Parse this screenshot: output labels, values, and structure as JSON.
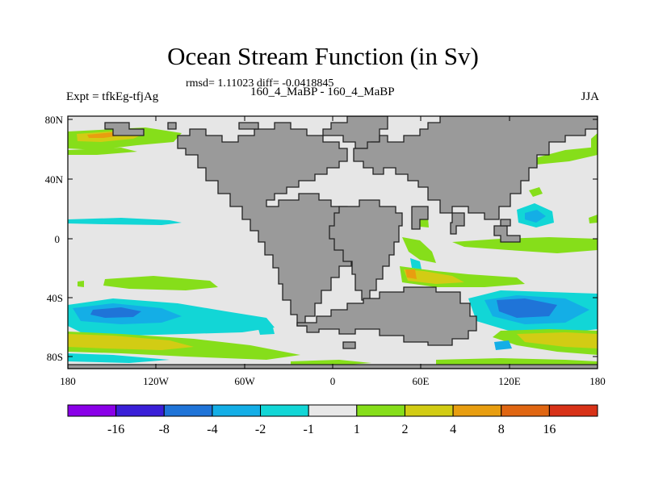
{
  "title": "Ocean Stream Function (in Sv)",
  "stats": "rmsd= 1.11023 diff= -0.0418845",
  "left_label": "Expt = tfkEg-tfjAg",
  "center_label": "160_4_MaBP - 160_4_MaBP",
  "right_label": "JJA",
  "lat_labels": [
    "80N",
    "40N",
    "0",
    "40S",
    "80S"
  ],
  "lon_labels": [
    "180",
    "120W",
    "60W",
    "0",
    "60E",
    "120E",
    "180"
  ],
  "colorbar": {
    "labels": [
      "-16",
      "-8",
      "-4",
      "-2",
      "-1",
      "1",
      "2",
      "4",
      "8",
      "16"
    ],
    "colors": [
      "#8a00e8",
      "#3a1fd8",
      "#1f74d8",
      "#14aee6",
      "#12d6d6",
      "#e8e8e8",
      "#86de1a",
      "#d2cc14",
      "#e89e10",
      "#e06612",
      "#d83218"
    ]
  },
  "colors": {
    "land": "#9a9a9a",
    "ocean_background": "#e6e6e6",
    "coast_outline": "#222222"
  }
}
